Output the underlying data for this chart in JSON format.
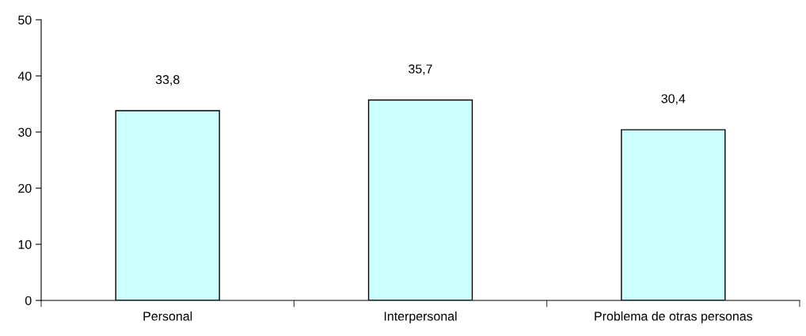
{
  "chart_data": {
    "type": "bar",
    "categories": [
      "Personal",
      "Interpersonal",
      "Problema de otras personas"
    ],
    "values": [
      33.8,
      35.7,
      30.4
    ],
    "value_labels": [
      "33,8",
      "35,7",
      "30,4"
    ],
    "color": "#ccffff",
    "ylim": [
      0,
      50
    ],
    "yticks": [
      0,
      10,
      20,
      30,
      40,
      50
    ],
    "grid": false
  }
}
